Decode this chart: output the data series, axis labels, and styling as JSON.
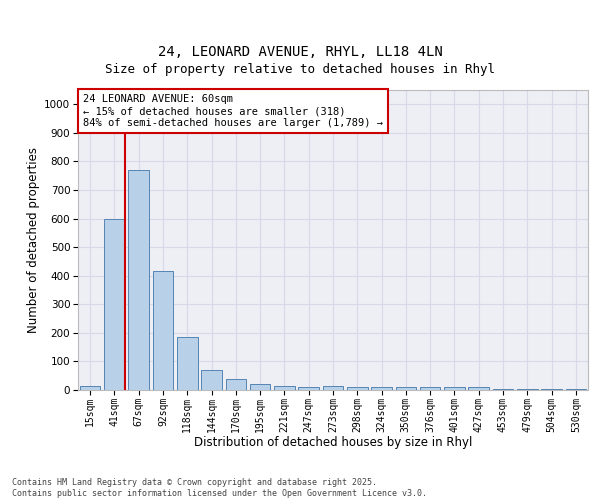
{
  "title_line1": "24, LEONARD AVENUE, RHYL, LL18 4LN",
  "title_line2": "Size of property relative to detached houses in Rhyl",
  "xlabel": "Distribution of detached houses by size in Rhyl",
  "ylabel": "Number of detached properties",
  "categories": [
    "15sqm",
    "41sqm",
    "67sqm",
    "92sqm",
    "118sqm",
    "144sqm",
    "170sqm",
    "195sqm",
    "221sqm",
    "247sqm",
    "273sqm",
    "298sqm",
    "324sqm",
    "350sqm",
    "376sqm",
    "401sqm",
    "427sqm",
    "453sqm",
    "479sqm",
    "504sqm",
    "530sqm"
  ],
  "values": [
    15,
    600,
    770,
    415,
    185,
    70,
    40,
    20,
    15,
    10,
    15,
    10,
    10,
    10,
    10,
    10,
    10,
    5,
    5,
    5,
    5
  ],
  "bar_color": "#b8d0e8",
  "bar_edge_color": "#5585b5",
  "annotation_box_text": "24 LEONARD AVENUE: 60sqm\n← 15% of detached houses are smaller (318)\n84% of semi-detached houses are larger (1,789) →",
  "annotation_box_color": "#ffffff",
  "annotation_box_edge_color": "#cc0000",
  "vline_color": "#cc0000",
  "ylim": [
    0,
    1050
  ],
  "yticks": [
    0,
    100,
    200,
    300,
    400,
    500,
    600,
    700,
    800,
    900,
    1000
  ],
  "grid_color": "#d8d8e8",
  "bg_color": "#eeeef5",
  "title_fontsize": 10,
  "subtitle_fontsize": 9,
  "tick_fontsize": 7,
  "label_fontsize": 8.5,
  "footer_text": "Contains HM Land Registry data © Crown copyright and database right 2025.\nContains public sector information licensed under the Open Government Licence v3.0."
}
